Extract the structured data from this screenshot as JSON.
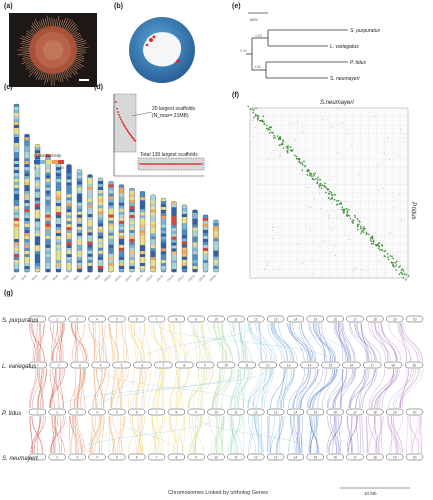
{
  "labels": {
    "a": "(a)",
    "b": "(b)",
    "c": "(c)",
    "d": "(d)",
    "e": "(e)",
    "f": "(f)",
    "g": "(g)"
  },
  "tree": {
    "scale_label": "5MY",
    "nodes": [
      "4.89",
      "0.99",
      "4.56"
    ],
    "species": [
      "S. purpuratus",
      "L. variegatus",
      "P. tidus",
      "S. neumayeri"
    ]
  },
  "karyotype": {
    "legend_title": "Gene Density",
    "legend_low": "0",
    "legend_high": "60",
    "chromosomes": [
      {
        "name": "Chr1",
        "length": 1.0
      },
      {
        "name": "Chr2",
        "length": 0.82
      },
      {
        "name": "Chr3",
        "length": 0.76
      },
      {
        "name": "Chr4",
        "length": 0.7
      },
      {
        "name": "Chr5",
        "length": 0.66
      },
      {
        "name": "Chr6",
        "length": 0.64
      },
      {
        "name": "Chr7",
        "length": 0.61
      },
      {
        "name": "Chr8",
        "length": 0.58
      },
      {
        "name": "Chr9",
        "length": 0.56
      },
      {
        "name": "Chr10",
        "length": 0.54
      },
      {
        "name": "Chr11",
        "length": 0.52
      },
      {
        "name": "Chr12",
        "length": 0.5
      },
      {
        "name": "Chr13",
        "length": 0.48
      },
      {
        "name": "Chr14",
        "length": 0.46
      },
      {
        "name": "Chr15",
        "length": 0.44
      },
      {
        "name": "Chr16",
        "length": 0.42
      },
      {
        "name": "Chr17",
        "length": 0.4
      },
      {
        "name": "Chr18",
        "length": 0.37
      },
      {
        "name": "Chr19",
        "length": 0.34
      },
      {
        "name": "Chr20",
        "length": 0.31
      }
    ]
  },
  "scaffolds": {
    "top_label_line1": "20 largest scaffolds",
    "top_label_line2": "(N_max= 21MB)",
    "bottom_label": "Total 130 largest scaffolds"
  },
  "dotplot": {
    "x_title": "S.neumayeri",
    "y_title": "P.tidus"
  },
  "synteny": {
    "species": [
      "S. purpuratus",
      "L. variegatus",
      "P. tidus",
      "S. neumayeri"
    ],
    "footer": "Chromosomes Linked by ortholog Genes",
    "scale": "10 Mb",
    "colors": [
      "#c0392b",
      "#d4663a",
      "#e08a45",
      "#e8a454",
      "#eebf5b",
      "#e9d46a",
      "#c9d67a",
      "#9fcf8f",
      "#7cc6b5",
      "#6bb4d6",
      "#5a95d0",
      "#4a72c4",
      "#5a5fb8",
      "#7b5fb8",
      "#9a6bc0",
      "#b882c8",
      "#c796cf"
    ],
    "sp_chrom_count": 20,
    "lv_chrom_count": 19,
    "pt_chrom_count": 20,
    "sn_chrom_count": 20
  }
}
